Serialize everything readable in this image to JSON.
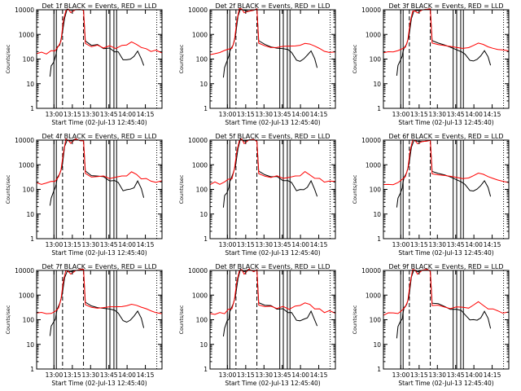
{
  "panel_titles": [
    "Det  1f BLACK = Events, RED = LLD",
    "Det  2f BLACK = Events, RED = LLD",
    "Det  3f BLACK = Events, RED = LLD",
    "Det  4f BLACK = Events, RED = LLD",
    "Det  5f BLACK = Events, RED = LLD",
    "Det  6f BLACK = Events, RED = LLD",
    "Det  7f BLACK = Events, RED = LLD",
    "Det  8f BLACK = Events, RED = LLD",
    "Det  9f BLACK = Events, RED = LLD"
  ],
  "xlabel": "Start Time (02-Jul-13 12:45:40)",
  "ylabel": "Counts/sec",
  "colors": {
    "events": "#000000",
    "lld": "#ff0000"
  },
  "chart_data": {
    "type": "line",
    "layout": "3x3 grid",
    "x_ticks": [
      "13:00",
      "13:15",
      "13:30",
      "13:45",
      "14:00",
      "14:15"
    ],
    "x_tick_minutes": [
      14.33,
      29.33,
      44.33,
      59.33,
      74.33,
      89.33
    ],
    "xlim_minutes": [
      0,
      103
    ],
    "y_scale": "log",
    "ylim": [
      1,
      10000
    ],
    "y_ticks": [
      "1",
      "10",
      "100",
      "1000",
      "10000"
    ],
    "dashed_vlines_minutes": [
      21.3,
      38.5,
      98.7
    ],
    "solid_vlines_minutes": [
      14.2,
      16.2,
      57.3,
      60.2,
      63.5,
      65.7
    ],
    "series": [
      {
        "name": "BLACK = Events",
        "color": "#000000",
        "x": [
          11,
          12,
          14,
          15.5,
          16,
          17,
          19,
          21,
          23,
          25,
          28,
          32,
          36,
          38.5,
          40,
          45,
          50,
          55,
          60,
          64,
          67,
          71,
          74,
          77,
          80,
          83,
          86,
          88
        ],
        "y": [
          20,
          50,
          80,
          120,
          180,
          280,
          420,
          950,
          5000,
          10000,
          10000,
          10000,
          10000,
          10000,
          500,
          400,
          350,
          300,
          250,
          220,
          180,
          100,
          90,
          100,
          130,
          200,
          110,
          50
        ]
      },
      {
        "name": "RED = LLD",
        "color": "#ff0000",
        "x": [
          0,
          4,
          8,
          12,
          15,
          18,
          20,
          22,
          24,
          26,
          28,
          32,
          36,
          38.5,
          40,
          45,
          50,
          55,
          60,
          65,
          70,
          74,
          78,
          82,
          86,
          90,
          94,
          98,
          103
        ],
        "y": [
          170,
          180,
          175,
          200,
          240,
          300,
          600,
          3500,
          10000,
          10000,
          8000,
          10000,
          10000,
          10000,
          400,
          350,
          330,
          320,
          310,
          300,
          330,
          400,
          480,
          400,
          300,
          250,
          220,
          210,
          200
        ]
      }
    ]
  }
}
